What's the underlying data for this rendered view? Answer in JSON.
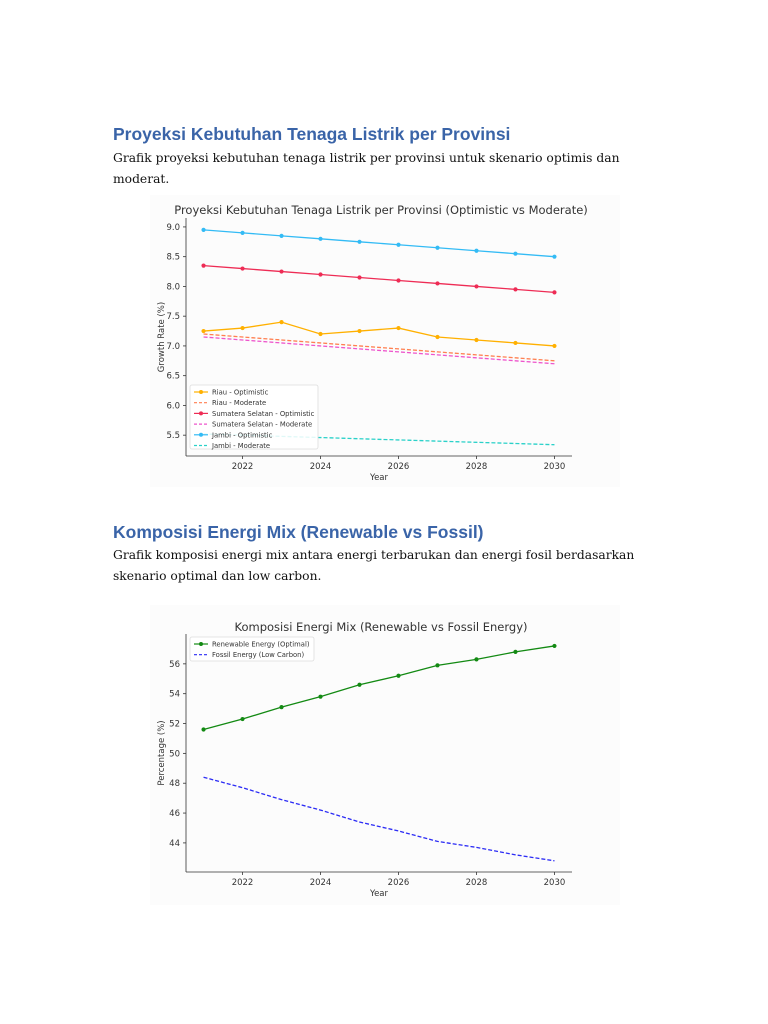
{
  "section1": {
    "heading": "Proyeksi Kebutuhan Tenaga Listrik per Provinsi",
    "text": "Grafik proyeksi kebutuhan tenaga listrik per provinsi untuk skenario optimis dan moderat."
  },
  "section2": {
    "heading": "Komposisi Energi Mix (Renewable vs Fossil)",
    "text": "Grafik komposisi energi mix antara energi terbarukan dan energi fosil berdasarkan skenario optimal dan low carbon."
  },
  "chart_data": [
    {
      "type": "line",
      "title": "Proyeksi Kebutuhan Tenaga Listrik per Provinsi (Optimistic vs Moderate)",
      "xlabel": "Year",
      "ylabel": "Growth Rate (%)",
      "x": [
        2021,
        2022,
        2023,
        2024,
        2025,
        2026,
        2027,
        2028,
        2029,
        2030
      ],
      "xticks": [
        2022,
        2024,
        2026,
        2028,
        2030
      ],
      "yticks": [
        "5.5",
        "6.0",
        "6.5",
        "7.0",
        "7.5",
        "8.0",
        "8.5",
        "9.0"
      ],
      "ylim": [
        5.15,
        9.15
      ],
      "xlim": [
        2020.55,
        2030.45
      ],
      "grid": false,
      "legend": "bottom-left",
      "series": [
        {
          "name": "Riau - Optimistic",
          "color": "#ffb000",
          "style": "solid-marker",
          "values": [
            7.25,
            7.3,
            7.4,
            7.2,
            7.25,
            7.3,
            7.15,
            7.1,
            7.05,
            7.0
          ]
        },
        {
          "name": "Riau - Moderate",
          "color": "#ff7f50",
          "style": "dashed",
          "values": [
            7.2,
            7.15,
            7.1,
            7.05,
            7.0,
            6.95,
            6.9,
            6.85,
            6.8,
            6.75
          ]
        },
        {
          "name": "Sumatera Selatan - Optimistic",
          "color": "#ee2c55",
          "style": "solid-marker",
          "values": [
            8.35,
            8.3,
            8.25,
            8.2,
            8.15,
            8.1,
            8.05,
            8.0,
            7.95,
            7.9
          ]
        },
        {
          "name": "Sumatera Selatan - Moderate",
          "color": "#ee55cc",
          "style": "dashed",
          "values": [
            7.15,
            7.1,
            7.05,
            7.0,
            6.95,
            6.9,
            6.85,
            6.8,
            6.75,
            6.7
          ]
        },
        {
          "name": "Jambi - Optimistic",
          "color": "#33bbf5",
          "style": "solid-marker",
          "values": [
            8.95,
            8.9,
            8.85,
            8.8,
            8.75,
            8.7,
            8.65,
            8.6,
            8.55,
            8.5
          ]
        },
        {
          "name": "Jambi - Moderate",
          "color": "#2ad1c9",
          "style": "dashed",
          "values": [
            5.52,
            5.5,
            5.48,
            5.46,
            5.44,
            5.42,
            5.4,
            5.38,
            5.36,
            5.34
          ]
        }
      ]
    },
    {
      "type": "line",
      "title": "Komposisi Energi Mix (Renewable vs Fossil Energy)",
      "xlabel": "Year",
      "ylabel": "Percentage (%)",
      "x": [
        2021,
        2022,
        2023,
        2024,
        2025,
        2026,
        2027,
        2028,
        2029,
        2030
      ],
      "xticks": [
        2022,
        2024,
        2026,
        2028,
        2030
      ],
      "yticks": [
        "44",
        "46",
        "48",
        "50",
        "52",
        "54",
        "56"
      ],
      "ylim": [
        42.05,
        58.0
      ],
      "xlim": [
        2020.55,
        2030.45
      ],
      "grid": false,
      "legend": "top-left",
      "series": [
        {
          "name": "Renewable Energy (Optimal)",
          "color": "#138a13",
          "style": "solid-marker",
          "values": [
            51.6,
            52.3,
            53.1,
            53.8,
            54.6,
            55.2,
            55.9,
            56.3,
            56.8,
            57.2
          ]
        },
        {
          "name": "Fossil Energy (Low Carbon)",
          "color": "#2b2bf5",
          "style": "dashed",
          "values": [
            48.4,
            47.7,
            46.9,
            46.2,
            45.4,
            44.8,
            44.1,
            43.7,
            43.2,
            42.8
          ]
        }
      ]
    }
  ]
}
